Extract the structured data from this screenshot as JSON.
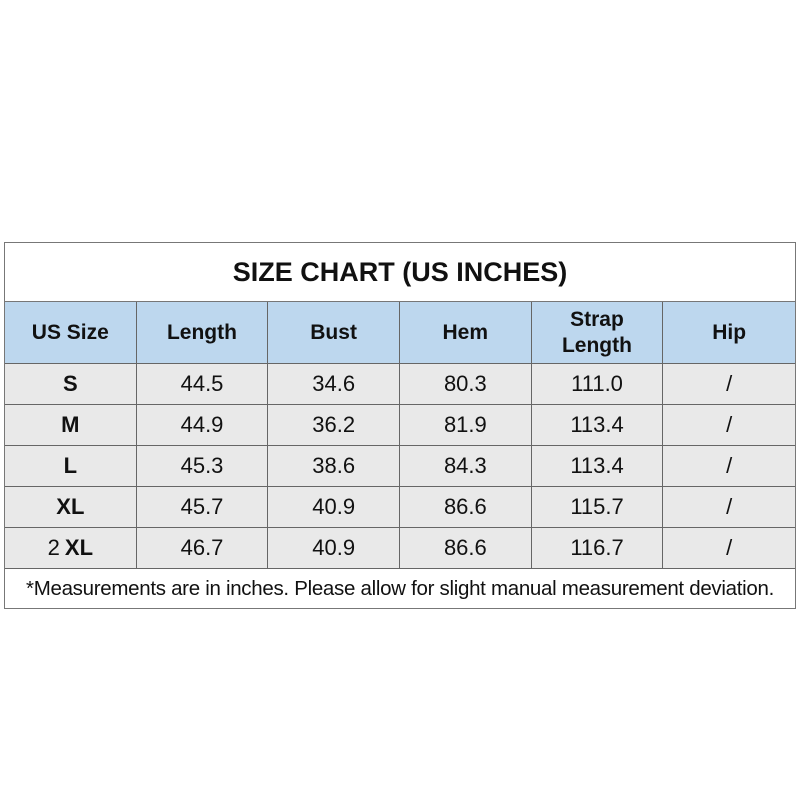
{
  "chart_data": {
    "type": "table",
    "title": "SIZE CHART (US INCHES)",
    "columns": [
      "US Size",
      "Length",
      "Bust",
      "Hem",
      "Strap Length",
      "Hip"
    ],
    "rows": [
      {
        "size_prefix": "",
        "size": "S",
        "values": [
          "44.5",
          "34.6",
          "80.3",
          "111.0",
          "/"
        ]
      },
      {
        "size_prefix": "",
        "size": "M",
        "values": [
          "44.9",
          "36.2",
          "81.9",
          "113.4",
          "/"
        ]
      },
      {
        "size_prefix": "",
        "size": "L",
        "values": [
          "45.3",
          "38.6",
          "84.3",
          "113.4",
          "/"
        ]
      },
      {
        "size_prefix": "",
        "size": "XL",
        "values": [
          "45.7",
          "40.9",
          "86.6",
          "115.7",
          "/"
        ]
      },
      {
        "size_prefix": "2",
        "size": "XL",
        "values": [
          "46.7",
          "40.9",
          "86.6",
          "116.7",
          "/"
        ]
      }
    ],
    "footnote": "*Measurements are in inches. Please allow for slight manual measurement deviation.",
    "colors": {
      "header_bg": "#bdd7ee",
      "row_bg": "#e9e9e9",
      "border": "#666666"
    }
  }
}
